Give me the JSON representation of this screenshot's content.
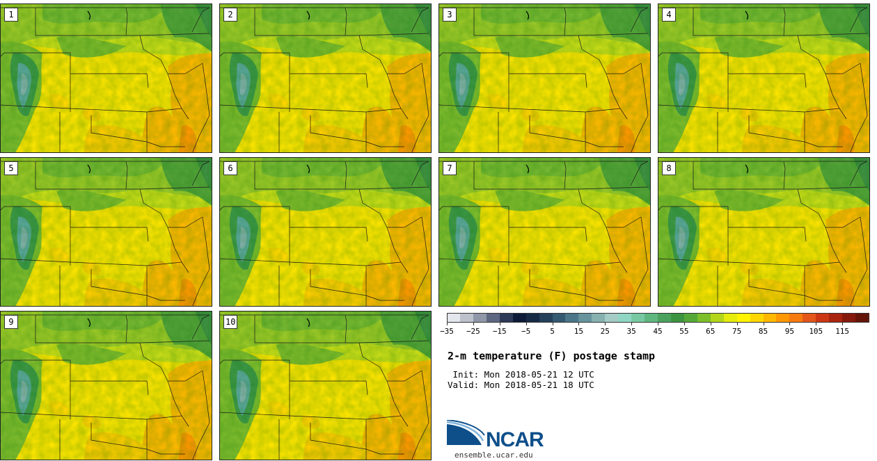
{
  "panels": [
    "1",
    "2",
    "3",
    "4",
    "5",
    "6",
    "7",
    "8",
    "9",
    "10"
  ],
  "colorbar": {
    "colors": [
      "#e3e6ec",
      "#bcc1cc",
      "#8f97a8",
      "#5d6780",
      "#2e3a58",
      "#0d1b38",
      "#172a45",
      "#24405a",
      "#345a72",
      "#4a7688",
      "#66939c",
      "#86b1b0",
      "#a4cbc5",
      "#8fd6c4",
      "#78c9a2",
      "#5fb780",
      "#4aa25e",
      "#3d9440",
      "#55a838",
      "#7cbf2a",
      "#b4d61a",
      "#e6ec0c",
      "#fff300",
      "#ffd700",
      "#ffb800",
      "#ff9700",
      "#f77a0f",
      "#e4561a",
      "#cc3614",
      "#a8240f",
      "#851a0c",
      "#641508"
    ],
    "labels": [
      "−35",
      "−25",
      "−15",
      "−5",
      "5",
      "15",
      "25",
      "35",
      "45",
      "55",
      "65",
      "75",
      "85",
      "95",
      "105",
      "115"
    ]
  },
  "title": "2-m temperature (F) postage stamp",
  "init_line": " Init: Mon 2018-05-21 12 UTC",
  "valid_line": "Valid: Mon 2018-05-21 18 UTC",
  "logo": {
    "text": "NCAR",
    "url": "ensemble.ucar.edu",
    "color": "#0e4f8a"
  }
}
